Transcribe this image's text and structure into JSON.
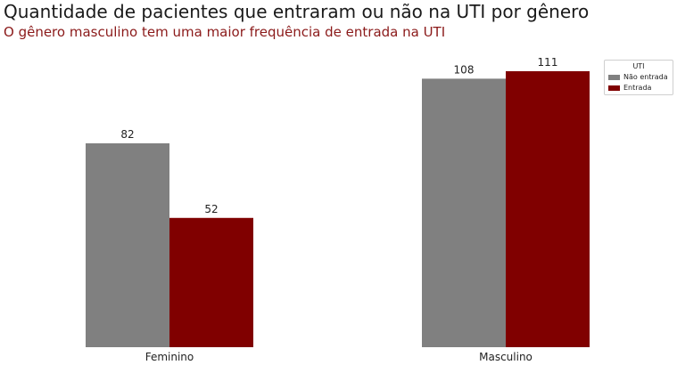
{
  "title": "Quantidade de pacientes que entraram ou não na UTI por gênero",
  "subtitle": "O gênero masculino tem uma maior frequência de entrada na UTI",
  "legend": {
    "title": "UTI",
    "items": [
      {
        "label": "Não entrada",
        "color": "#808080"
      },
      {
        "label": "Entrada",
        "color": "#800000"
      }
    ]
  },
  "chart_data": {
    "type": "bar",
    "title": "Quantidade de pacientes que entraram ou não na UTI por gênero",
    "subtitle": "O gênero masculino tem uma maior frequência de entrada na UTI",
    "categories": [
      "Feminino",
      "Masculino"
    ],
    "series": [
      {
        "name": "Não entrada",
        "values": [
          82,
          108
        ],
        "color": "#808080"
      },
      {
        "name": "Entrada",
        "values": [
          52,
          111
        ],
        "color": "#800000"
      }
    ],
    "ylim": [
      0,
      111
    ],
    "grid": false,
    "legend_position": "top-right",
    "legend_title": "UTI",
    "data_labels": true
  }
}
